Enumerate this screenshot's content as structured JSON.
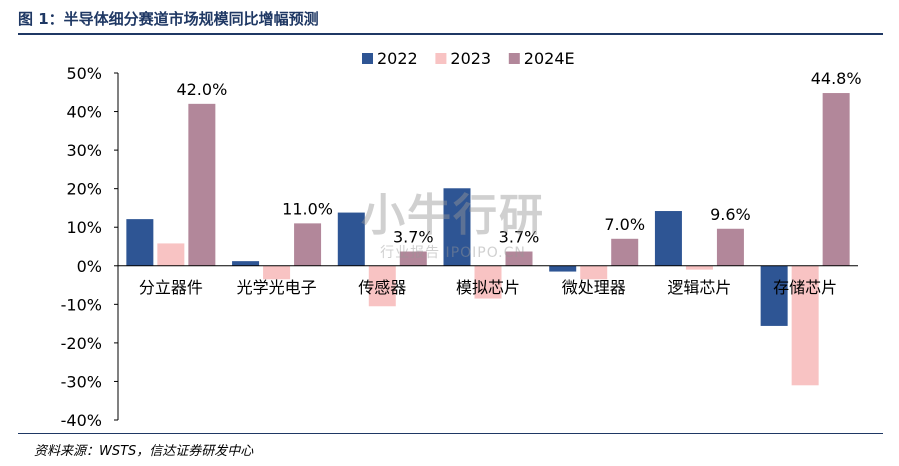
{
  "title": "图 1：半导体细分赛道市场规模同比增幅预测",
  "source": "资料来源：WSTS，信达证券研发中心",
  "watermark": {
    "main": "小牛行研",
    "sub": "行业报告 IPOIPO.CN"
  },
  "chart_data": {
    "type": "bar",
    "categories": [
      "分立器件",
      "光学光电子",
      "传感器",
      "模拟芯片",
      "微处理器",
      "逻辑芯片",
      "存储芯片"
    ],
    "series": [
      {
        "name": "2022",
        "color": "#2e5594",
        "values": [
          12.1,
          1.2,
          13.8,
          20.1,
          -1.5,
          14.2,
          -15.6
        ]
      },
      {
        "name": "2023",
        "color": "#f8c3c3",
        "values": [
          5.8,
          -3.5,
          -10.5,
          -8.5,
          -3.5,
          -1.0,
          -31.0
        ]
      },
      {
        "name": "2024E",
        "color": "#b2879a",
        "values": [
          42.0,
          11.0,
          3.7,
          3.7,
          7.0,
          9.6,
          44.8
        ]
      }
    ],
    "data_labels": {
      "series": "2024E",
      "labels": [
        "42.0%",
        "11.0%",
        "3.7%",
        "3.7%",
        "7.0%",
        "9.6%",
        "44.8%"
      ]
    },
    "yticks": [
      50,
      40,
      30,
      20,
      10,
      0,
      -10,
      -20,
      -30,
      -40
    ],
    "ytick_labels": [
      "50%",
      "40%",
      "30%",
      "20%",
      "10%",
      "0%",
      "-10%",
      "-20%",
      "-30%",
      "-40%"
    ],
    "ylim": [
      -40,
      50
    ],
    "xlabel": "",
    "ylabel": "",
    "legend": "top-center",
    "grid": false
  }
}
